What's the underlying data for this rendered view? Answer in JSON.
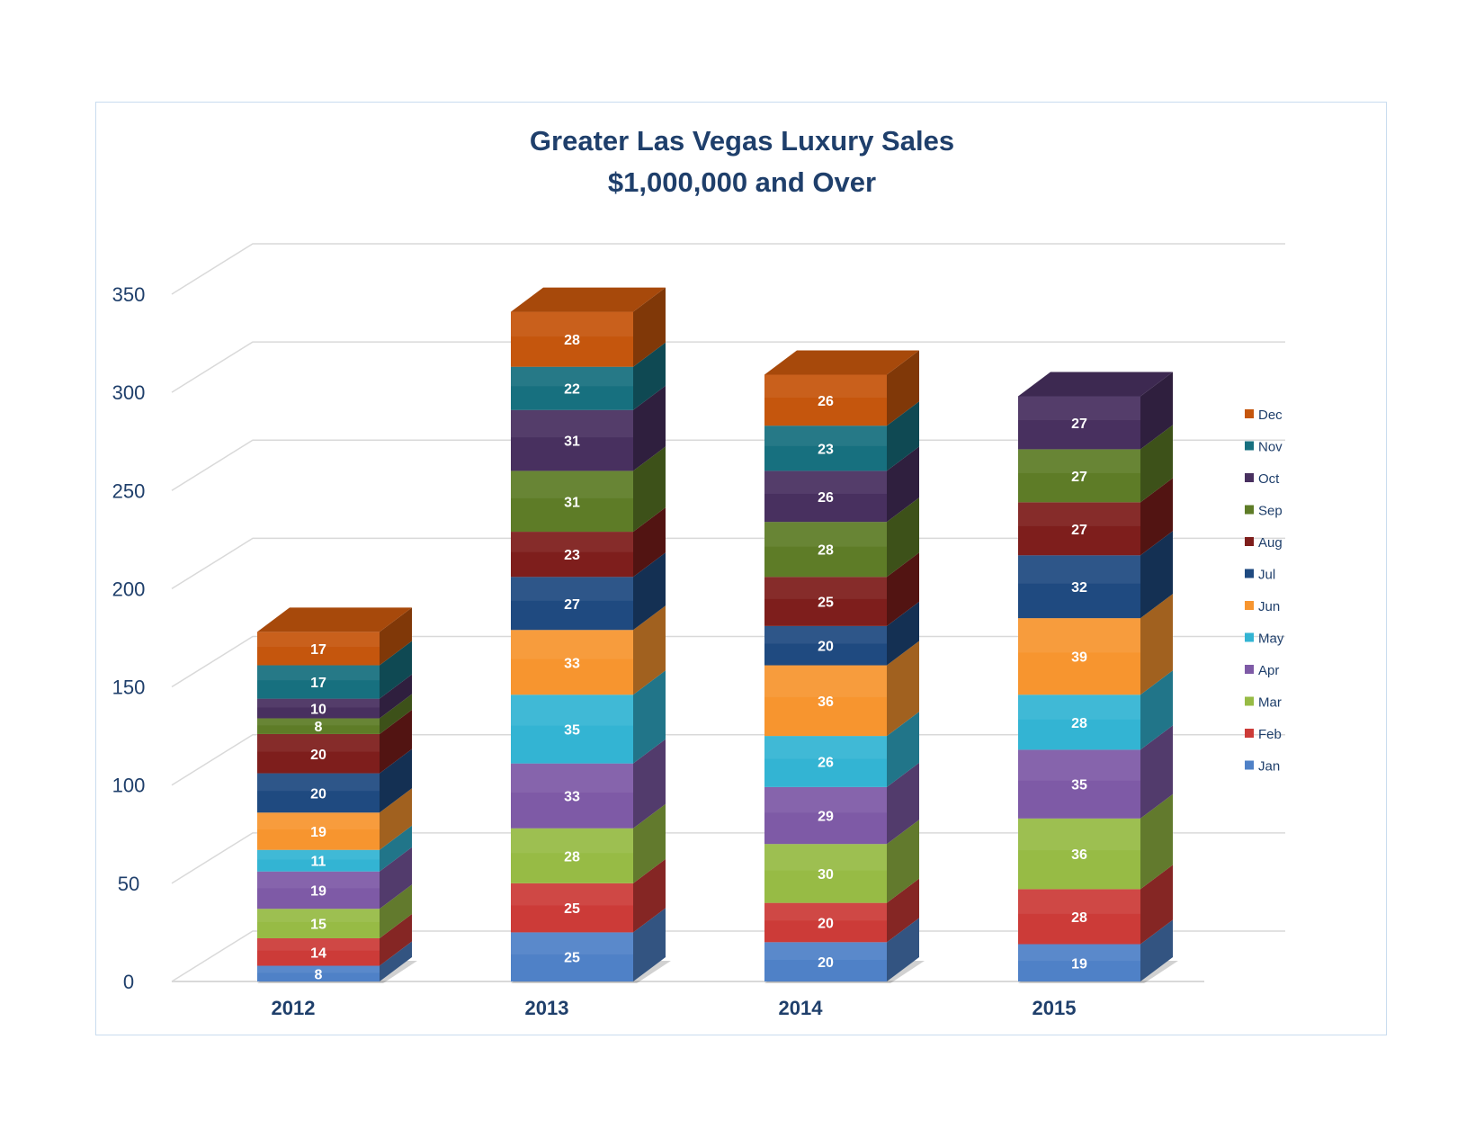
{
  "chart_data": {
    "type": "bar",
    "stacked": true,
    "three_d": true,
    "title": "Greater Las Vegas Luxury Sales",
    "subtitle": "$1,000,000 and Over",
    "xlabel": "",
    "ylabel": "",
    "ylim": [
      0,
      350
    ],
    "yticks": [
      "0",
      "50",
      "100",
      "150",
      "200",
      "250",
      "300",
      "350"
    ],
    "grid": true,
    "legend_position": "right",
    "categories": [
      "2012",
      "2013",
      "2014",
      "2015"
    ],
    "series": [
      {
        "name": "Jan",
        "color": "#4f81c7",
        "values": [
          8,
          25,
          20,
          19
        ]
      },
      {
        "name": "Feb",
        "color": "#cc3b38",
        "values": [
          14,
          25,
          20,
          28
        ]
      },
      {
        "name": "Mar",
        "color": "#97bb45",
        "values": [
          15,
          28,
          30,
          36
        ]
      },
      {
        "name": "Apr",
        "color": "#7e5aa6",
        "values": [
          19,
          33,
          29,
          35
        ]
      },
      {
        "name": "May",
        "color": "#33b4d3",
        "values": [
          11,
          35,
          26,
          28
        ]
      },
      {
        "name": "Jun",
        "color": "#f7952f",
        "values": [
          19,
          33,
          36,
          39
        ]
      },
      {
        "name": "Jul",
        "color": "#1f4a80",
        "values": [
          20,
          27,
          20,
          32
        ]
      },
      {
        "name": "Aug",
        "color": "#7e1e1c",
        "values": [
          20,
          23,
          25,
          27
        ]
      },
      {
        "name": "Sep",
        "color": "#5e7c27",
        "values": [
          8,
          31,
          28,
          27
        ]
      },
      {
        "name": "Oct",
        "color": "#48305f",
        "values": [
          10,
          31,
          26,
          27
        ]
      },
      {
        "name": "Nov",
        "color": "#17707f",
        "values": [
          17,
          22,
          23,
          null
        ]
      },
      {
        "name": "Dec",
        "color": "#c5560d",
        "values": [
          17,
          28,
          26,
          null
        ]
      }
    ]
  }
}
